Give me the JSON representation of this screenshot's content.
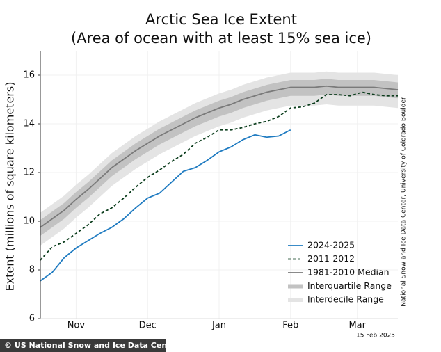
{
  "chart_data": {
    "type": "line",
    "title": "Arctic Sea Ice Extent",
    "subtitle": "(Area of ocean with at least 15% sea ice)",
    "y_label": "Extent (millions of square kilometers)",
    "source": "National Snow and Ice Data Center, University of Colorado Boulder",
    "date": "15 Feb 2025",
    "credit": "© US National Snow and Ice Data Center",
    "xlim": [
      0,
      150
    ],
    "xticks": [
      {
        "value": 15,
        "label": "Nov"
      },
      {
        "value": 45,
        "label": "Dec"
      },
      {
        "value": 75,
        "label": "Jan"
      },
      {
        "value": 105,
        "label": "Feb"
      },
      {
        "value": 133,
        "label": "Mar"
      }
    ],
    "ylim": [
      6,
      17
    ],
    "yticks": [
      6,
      8,
      10,
      12,
      14,
      16
    ],
    "grid": true,
    "legend": "lower right",
    "series": [
      {
        "name": "2024-2025",
        "color": "#1f7bc1",
        "style": "solid",
        "x": [
          0,
          5,
          10,
          15,
          20,
          25,
          30,
          35,
          40,
          45,
          50,
          55,
          60,
          65,
          70,
          75,
          80,
          85,
          90,
          95,
          100,
          105
        ],
        "values": [
          7.55,
          7.9,
          8.5,
          8.9,
          9.2,
          9.5,
          9.75,
          10.1,
          10.55,
          10.95,
          11.15,
          11.6,
          12.05,
          12.2,
          12.5,
          12.85,
          13.05,
          13.35,
          13.55,
          13.45,
          13.5,
          13.75
        ]
      },
      {
        "name": "2011-2012",
        "color": "#0b3d1c",
        "style": "dashed",
        "x": [
          0,
          5,
          10,
          15,
          20,
          25,
          30,
          35,
          40,
          45,
          50,
          55,
          60,
          65,
          70,
          75,
          80,
          85,
          90,
          95,
          100,
          105,
          110,
          115,
          120,
          125,
          130,
          135,
          140,
          145,
          150
        ],
        "values": [
          8.4,
          8.95,
          9.15,
          9.5,
          9.85,
          10.3,
          10.55,
          10.95,
          11.4,
          11.8,
          12.1,
          12.45,
          12.75,
          13.2,
          13.45,
          13.75,
          13.75,
          13.85,
          14.0,
          14.1,
          14.3,
          14.65,
          14.7,
          14.85,
          15.2,
          15.2,
          15.15,
          15.3,
          15.2,
          15.15,
          15.15
        ]
      },
      {
        "name": "1981-2010 Median",
        "color": "#7a7a7a",
        "style": "solid",
        "x": [
          0,
          5,
          10,
          15,
          20,
          25,
          30,
          35,
          40,
          45,
          50,
          55,
          60,
          65,
          70,
          75,
          80,
          85,
          90,
          95,
          100,
          105,
          110,
          115,
          120,
          125,
          130,
          135,
          140,
          145,
          150
        ],
        "values": [
          9.75,
          10.1,
          10.45,
          10.9,
          11.3,
          11.75,
          12.2,
          12.55,
          12.9,
          13.2,
          13.5,
          13.75,
          14.0,
          14.25,
          14.45,
          14.65,
          14.8,
          15.0,
          15.15,
          15.3,
          15.4,
          15.5,
          15.5,
          15.5,
          15.55,
          15.5,
          15.5,
          15.5,
          15.5,
          15.45,
          15.4
        ]
      },
      {
        "name": "Interquartile Range",
        "color": "#c2c2c2",
        "style": "band",
        "x": [
          0,
          5,
          10,
          15,
          20,
          25,
          30,
          35,
          40,
          45,
          50,
          55,
          60,
          65,
          70,
          75,
          80,
          85,
          90,
          95,
          100,
          105,
          110,
          115,
          120,
          125,
          130,
          135,
          140,
          145,
          150
        ],
        "low": [
          9.4,
          9.75,
          10.1,
          10.55,
          10.95,
          11.4,
          11.85,
          12.2,
          12.55,
          12.85,
          13.15,
          13.4,
          13.65,
          13.9,
          14.1,
          14.3,
          14.45,
          14.65,
          14.8,
          14.95,
          15.05,
          15.15,
          15.15,
          15.15,
          15.2,
          15.15,
          15.15,
          15.15,
          15.15,
          15.1,
          15.05
        ],
        "high": [
          10.05,
          10.4,
          10.75,
          11.2,
          11.6,
          12.05,
          12.5,
          12.85,
          13.2,
          13.5,
          13.8,
          14.05,
          14.3,
          14.55,
          14.75,
          14.95,
          15.1,
          15.3,
          15.45,
          15.6,
          15.7,
          15.8,
          15.8,
          15.8,
          15.85,
          15.8,
          15.8,
          15.8,
          15.8,
          15.75,
          15.7
        ]
      },
      {
        "name": "Interdecile Range",
        "color": "#e4e4e4",
        "style": "band",
        "x": [
          0,
          5,
          10,
          15,
          20,
          25,
          30,
          35,
          40,
          45,
          50,
          55,
          60,
          65,
          70,
          75,
          80,
          85,
          90,
          95,
          100,
          105,
          110,
          115,
          120,
          125,
          130,
          135,
          140,
          145,
          150
        ],
        "low": [
          9.0,
          9.35,
          9.7,
          10.15,
          10.55,
          11.0,
          11.45,
          11.8,
          12.15,
          12.45,
          12.75,
          13.0,
          13.25,
          13.5,
          13.7,
          13.9,
          14.05,
          14.25,
          14.4,
          14.55,
          14.65,
          14.75,
          14.75,
          14.75,
          14.8,
          14.75,
          14.75,
          14.75,
          14.75,
          14.7,
          14.65
        ],
        "high": [
          10.35,
          10.7,
          11.05,
          11.5,
          11.9,
          12.35,
          12.8,
          13.15,
          13.5,
          13.8,
          14.1,
          14.35,
          14.6,
          14.85,
          15.05,
          15.25,
          15.4,
          15.6,
          15.75,
          15.9,
          16.0,
          16.1,
          16.1,
          16.1,
          16.15,
          16.1,
          16.1,
          16.1,
          16.1,
          16.05,
          16.0
        ]
      }
    ]
  }
}
